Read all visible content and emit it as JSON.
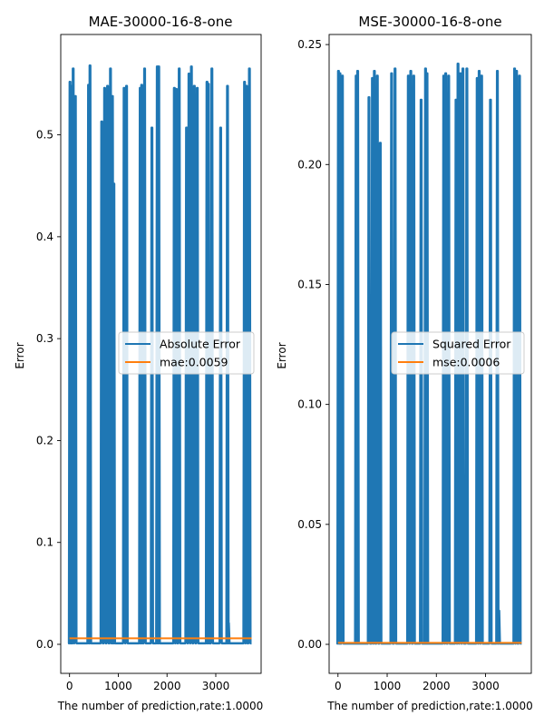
{
  "colors": {
    "error_series": "#1f77b4",
    "mean_series": "#ff7f0e",
    "axes": "#000000",
    "legend_border": "#cccccc"
  },
  "chart_data": [
    {
      "type": "line",
      "title": "MAE-30000-16-8-one",
      "xlabel": "The number of prediction,rate:1.0000",
      "ylabel": "Error",
      "xlim": [
        -180,
        3930
      ],
      "ylim": [
        -0.0285,
        0.5985
      ],
      "xticks": [
        0,
        1000,
        2000,
        3000
      ],
      "xtick_labels": [
        "0",
        "1000",
        "2000",
        "3000"
      ],
      "yticks": [
        0.0,
        0.1,
        0.2,
        0.3,
        0.4,
        0.5
      ],
      "ytick_labels": [
        "0.0",
        "0.1",
        "0.2",
        "0.3",
        "0.4",
        "0.5"
      ],
      "grid": false,
      "legend_position": "center-right",
      "baseline": 0.001,
      "num_points": 3735,
      "series": [
        {
          "name": "Absolute Error",
          "spikes": [
            [
              10,
              0.552
            ],
            [
              40,
              0.548
            ],
            [
              75,
              0.565
            ],
            [
              120,
              0.538
            ],
            [
              390,
              0.549
            ],
            [
              420,
              0.568
            ],
            [
              660,
              0.513
            ],
            [
              720,
              0.546
            ],
            [
              780,
              0.548
            ],
            [
              840,
              0.565
            ],
            [
              880,
              0.538
            ],
            [
              910,
              0.452
            ],
            [
              1120,
              0.546
            ],
            [
              1170,
              0.548
            ],
            [
              1450,
              0.546
            ],
            [
              1480,
              0.549
            ],
            [
              1540,
              0.565
            ],
            [
              1690,
              0.507
            ],
            [
              1800,
              0.567
            ],
            [
              1830,
              0.567
            ],
            [
              2150,
              0.546
            ],
            [
              2190,
              0.545
            ],
            [
              2250,
              0.565
            ],
            [
              2400,
              0.507
            ],
            [
              2450,
              0.56
            ],
            [
              2500,
              0.567
            ],
            [
              2560,
              0.548
            ],
            [
              2620,
              0.546
            ],
            [
              2820,
              0.552
            ],
            [
              2850,
              0.55
            ],
            [
              2920,
              0.565
            ],
            [
              3100,
              0.507
            ],
            [
              3240,
              0.548
            ],
            [
              3260,
              0.021
            ],
            [
              3590,
              0.552
            ],
            [
              3630,
              0.548
            ],
            [
              3690,
              0.565
            ]
          ]
        },
        {
          "name": "mae:0.0059",
          "value": 0.0059
        }
      ]
    },
    {
      "type": "line",
      "title": "MSE-30000-16-8-one",
      "xlabel": "The number of prediction,rate:1.0000",
      "ylabel": "Error",
      "xlim": [
        -180,
        3930
      ],
      "ylim": [
        -0.0121,
        0.2542
      ],
      "xticks": [
        0,
        1000,
        2000,
        3000
      ],
      "xtick_labels": [
        "0",
        "1000",
        "2000",
        "3000"
      ],
      "yticks": [
        0.0,
        0.05,
        0.1,
        0.15,
        0.2,
        0.25
      ],
      "ytick_labels": [
        "0.00",
        "0.05",
        "0.10",
        "0.15",
        "0.20",
        "0.25"
      ],
      "grid": false,
      "legend_position": "center-right",
      "baseline": 0.0003,
      "num_points": 3735,
      "series": [
        {
          "name": "Squared Error",
          "spikes": [
            [
              10,
              0.239
            ],
            [
              40,
              0.238
            ],
            [
              90,
              0.237
            ],
            [
              370,
              0.237
            ],
            [
              400,
              0.239
            ],
            [
              630,
              0.228
            ],
            [
              700,
              0.236
            ],
            [
              740,
              0.239
            ],
            [
              800,
              0.237
            ],
            [
              860,
              0.209
            ],
            [
              1090,
              0.238
            ],
            [
              1160,
              0.24
            ],
            [
              1430,
              0.237
            ],
            [
              1480,
              0.239
            ],
            [
              1540,
              0.237
            ],
            [
              1690,
              0.227
            ],
            [
              1780,
              0.24
            ],
            [
              1810,
              0.238
            ],
            [
              2150,
              0.237
            ],
            [
              2190,
              0.238
            ],
            [
              2250,
              0.237
            ],
            [
              2400,
              0.227
            ],
            [
              2440,
              0.242
            ],
            [
              2490,
              0.238
            ],
            [
              2540,
              0.24
            ],
            [
              2620,
              0.24
            ],
            [
              2830,
              0.236
            ],
            [
              2870,
              0.239
            ],
            [
              2920,
              0.237
            ],
            [
              3100,
              0.227
            ],
            [
              3240,
              0.239
            ],
            [
              3270,
              0.014
            ],
            [
              3590,
              0.24
            ],
            [
              3630,
              0.239
            ],
            [
              3690,
              0.237
            ]
          ]
        },
        {
          "name": "mse:0.0006",
          "value": 0.0006
        }
      ]
    }
  ]
}
